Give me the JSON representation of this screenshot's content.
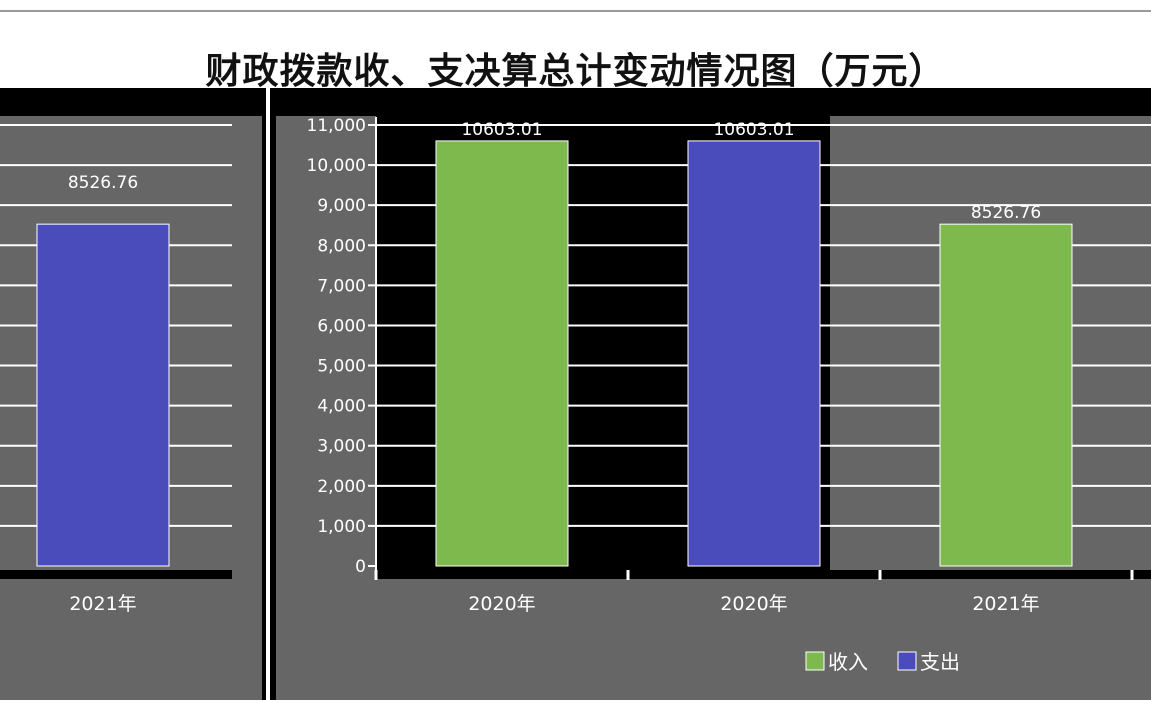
{
  "chart_data": {
    "type": "bar",
    "title": "财政拨款收、支决算总计变动情况图（万元）",
    "categories": [
      "2020年",
      "2020年",
      "2021年"
    ],
    "values": [
      10603.01,
      10603.01,
      8526.76
    ],
    "value_labels": [
      "10603.01",
      "10603.01",
      "8526.76"
    ],
    "bar_series": [
      "收入",
      "支出",
      "收入"
    ],
    "series": [
      {
        "name": "收入",
        "color": "#7db94c"
      },
      {
        "name": "支出",
        "color": "#4b4cbb"
      }
    ],
    "y_ticks": [
      "0",
      "1,000",
      "2,000",
      "3,000",
      "4,000",
      "5,000",
      "6,000",
      "7,000",
      "8,000",
      "9,000",
      "10,000",
      "11,000"
    ],
    "ylim": [
      0,
      11000
    ],
    "grid": true,
    "legend_position": "bottom-right",
    "left_fragment": {
      "category": "2021年",
      "value": 8526.76,
      "value_label": "8526.76",
      "series": "支出"
    }
  }
}
